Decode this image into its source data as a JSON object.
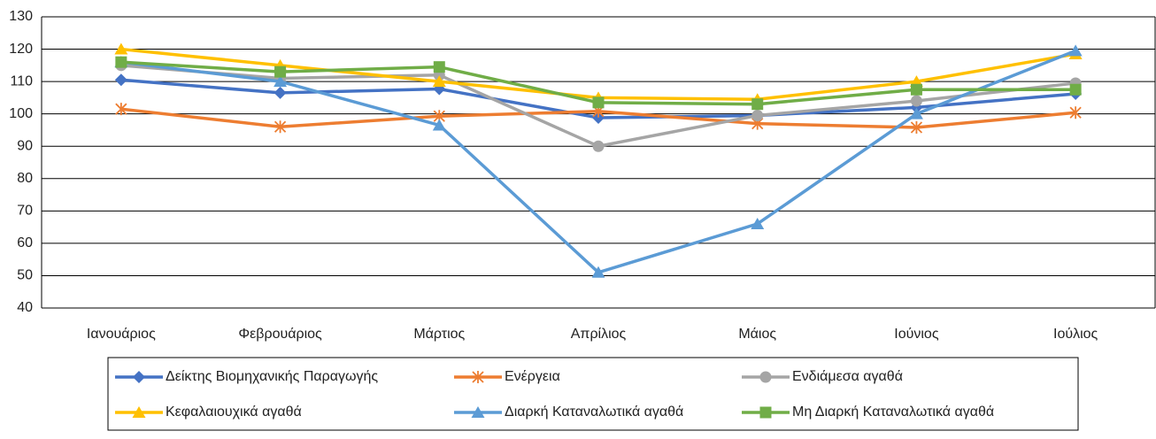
{
  "chart_data": {
    "type": "line",
    "categories": [
      "Ιανουάριος",
      "Φεβρουάριος",
      "Μάρτιος",
      "Απρίλιος",
      "Μάιος",
      "Ιούνιος",
      "Ιούλιος"
    ],
    "series": [
      {
        "name": "Δείκτης Βιομηχανικής Παραγωγής",
        "color": "#4472c4",
        "marker": "diamond",
        "values": [
          110.5,
          106.5,
          107.7,
          98.8,
          99.5,
          102,
          106.2
        ]
      },
      {
        "name": "Ενέργεια",
        "color": "#ed7d31",
        "marker": "star",
        "values": [
          101.5,
          96,
          99.3,
          100.8,
          97,
          95.8,
          100.4
        ]
      },
      {
        "name": "Ενδιάμεσα αγαθά",
        "color": "#a5a5a5",
        "marker": "circle",
        "values": [
          115,
          111,
          112,
          90,
          99.5,
          104,
          109.5
        ]
      },
      {
        "name": "Κεφαλαιουχικά αγαθά",
        "color": "#ffc000",
        "marker": "triangle",
        "values": [
          120,
          115,
          110,
          105,
          104.5,
          110,
          118.5
        ]
      },
      {
        "name": "Διαρκή Καταναλωτικά αγαθά",
        "color": "#5b9bd5",
        "marker": "triangle",
        "values": [
          116,
          110,
          96.5,
          51,
          66,
          100,
          119.5
        ]
      },
      {
        "name": "Μη Διαρκή Καταναλωτικά αγαθά",
        "color": "#70ad47",
        "marker": "square",
        "values": [
          116,
          113,
          114.5,
          103.5,
          103,
          107.5,
          107.5
        ]
      }
    ],
    "ylim": [
      40,
      130
    ],
    "yticks": [
      40,
      50,
      60,
      70,
      80,
      90,
      100,
      110,
      120,
      130
    ],
    "grid": true,
    "legend": "bottom"
  }
}
